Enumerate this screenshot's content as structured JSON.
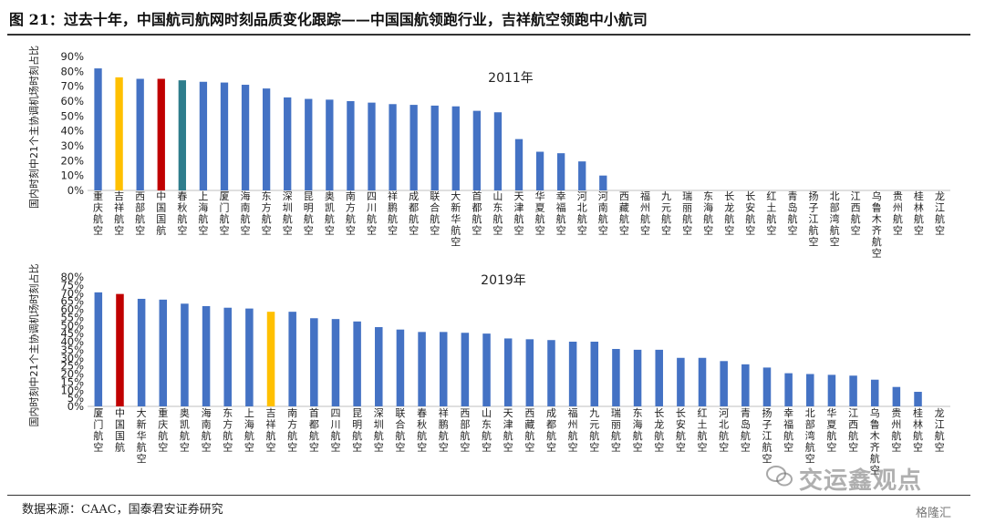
{
  "figure_title": "图 21：过去十年，中国航司航网时刻品质变化跟踪——中国国航领跑行业，吉祥航空领跑中小航司",
  "source": "数据来源：CAAC，国泰君安证券研究",
  "watermark": "交运鑫观点",
  "logo_text": "格隆汇",
  "colors": {
    "default": "#4472C4",
    "air_china": "#C00000",
    "juneyao": "#FFC000",
    "spring": "#2E7D8C"
  },
  "chart_data": [
    {
      "type": "bar",
      "title": "2011年",
      "ylabel": "国内时刻中21个主协调机场时刻占比",
      "ylim": [
        0,
        90
      ],
      "yticks": [
        "0%",
        "10%",
        "20%",
        "30%",
        "40%",
        "50%",
        "60%",
        "70%",
        "80%",
        "90%"
      ],
      "categories": [
        "重庆航空",
        "吉祥航空",
        "西部航空",
        "中国国航",
        "春秋航空",
        "上海航空",
        "厦门航空",
        "海南航空",
        "东方航空",
        "深圳航空",
        "昆明航空",
        "奥凯航空",
        "南方航空",
        "四川航空",
        "祥鹏航空",
        "成都航空",
        "联合航空",
        "大新华航空",
        "首都航空",
        "山东航空",
        "天津航空",
        "华夏航空",
        "幸福航空",
        "河北航空",
        "河南航空",
        "西藏航空",
        "福州航空",
        "九元航空",
        "瑞丽航空",
        "东海航空",
        "长龙航空",
        "长安航空",
        "红土航空",
        "青岛航空",
        "扬子江航空",
        "北部湾航空",
        "江西航空",
        "乌鲁木齐航空",
        "贵州航空",
        "桂林航空",
        "龙江航空"
      ],
      "values": [
        82,
        76,
        75,
        75,
        74,
        73,
        72.5,
        71,
        68.5,
        62.5,
        61.5,
        61,
        60,
        59,
        58,
        57.5,
        57,
        56.5,
        53.5,
        52.5,
        34.5,
        26,
        25,
        19.5,
        10,
        0,
        0,
        0,
        0,
        0,
        0,
        0,
        0,
        0,
        0,
        0,
        0,
        0,
        0,
        0,
        0
      ],
      "highlight": {
        "吉祥航空": "juneyao",
        "中国国航": "air_china",
        "春秋航空": "spring"
      }
    },
    {
      "type": "bar",
      "title": "2019年",
      "ylabel": "国内时刻中21个主协调机场时刻占比",
      "ylim": [
        0,
        80
      ],
      "yticks": [
        "0%",
        "5%",
        "10%",
        "15%",
        "20%",
        "25%",
        "30%",
        "35%",
        "40%",
        "45%",
        "50%",
        "55%",
        "60%",
        "65%",
        "70%",
        "75%",
        "80%"
      ],
      "categories": [
        "厦门航空",
        "中国国航",
        "大新华航空",
        "重庆航空",
        "奥凯航空",
        "海南航空",
        "东方航空",
        "上海航空",
        "吉祥航空",
        "南方航空",
        "首都航空",
        "四川航空",
        "昆明航空",
        "深圳航空",
        "联合航空",
        "春秋航空",
        "祥鹏航空",
        "西部航空",
        "山东航空",
        "天津航空",
        "西藏航空",
        "成都航空",
        "福州航空",
        "九元航空",
        "瑞丽航空",
        "东海航空",
        "长龙航空",
        "长安航空",
        "红土航空",
        "河北航空",
        "青岛航空",
        "扬子江航空",
        "幸福航空",
        "北部湾航空",
        "华夏航空",
        "江西航空",
        "乌鲁木齐航空",
        "贵州航空",
        "桂林航空",
        "龙江航空"
      ],
      "values": [
        70.5,
        69.5,
        66.5,
        66,
        63.5,
        62,
        61,
        60.5,
        58.5,
        58.5,
        54.5,
        54,
        52.5,
        49,
        47.5,
        46,
        46,
        45.5,
        45,
        42,
        41.5,
        41,
        40,
        40,
        35.5,
        35,
        35,
        30,
        30,
        28,
        26,
        24,
        20.5,
        20,
        19.5,
        19,
        16.5,
        12,
        9,
        0
      ],
      "highlight": {
        "中国国航": "air_china",
        "吉祥航空": "juneyao"
      }
    }
  ]
}
